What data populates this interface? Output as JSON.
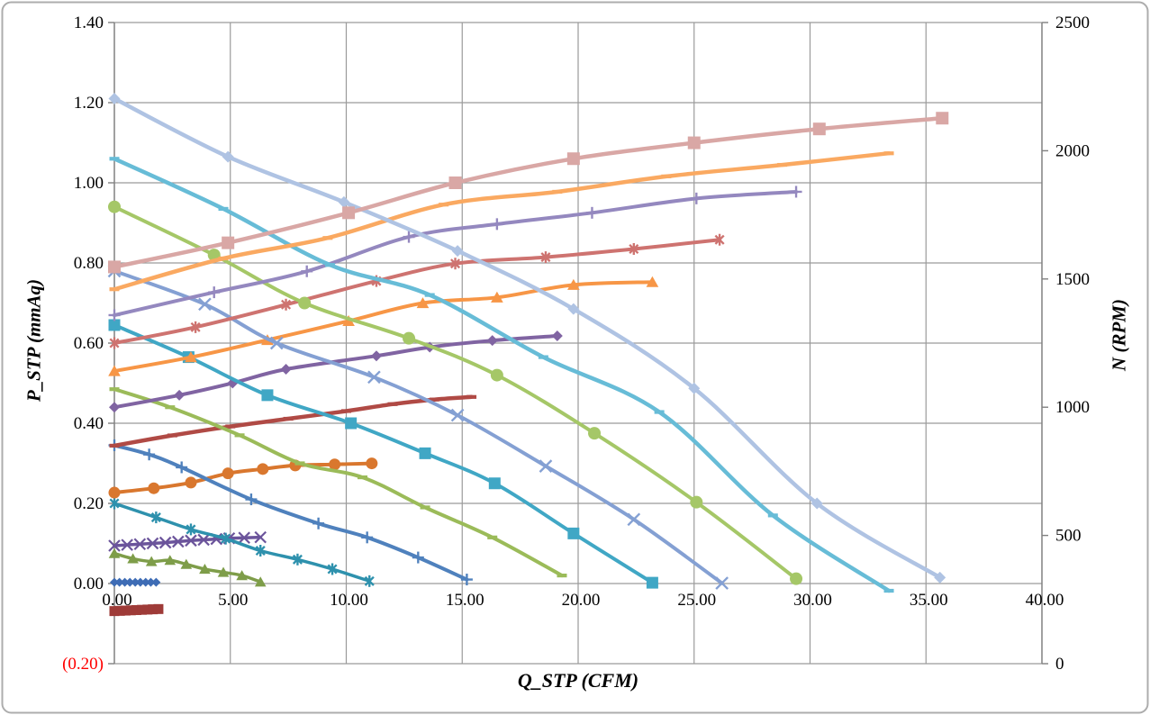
{
  "chart_data": {
    "type": "line",
    "xlabel": "Q_STP (CFM)",
    "ylabel_left": "P_STP (mmAq)",
    "ylabel_right": "N (RPM)",
    "xlim": [
      0,
      40
    ],
    "ylim_left": [
      -0.2,
      1.4
    ],
    "ylim_right": [
      0,
      2500
    ],
    "grid": true,
    "legend": "none",
    "colors": {
      "grid": "#9A9A9A",
      "axis": "#808080",
      "frame": "#ADADAD",
      "text": "#000000",
      "negative_tick": "#FF0000"
    },
    "x_ticks": [
      {
        "label": "0.00",
        "value": 0
      },
      {
        "label": "5.00",
        "value": 5
      },
      {
        "label": "10.00",
        "value": 10
      },
      {
        "label": "15.00",
        "value": 15
      },
      {
        "label": "20.00",
        "value": 20
      },
      {
        "label": "25.00",
        "value": 25
      },
      {
        "label": "30.00",
        "value": 30
      },
      {
        "label": "35.00",
        "value": 35
      },
      {
        "label": "40.00",
        "value": 40
      }
    ],
    "y_left_ticks": [
      {
        "label": "1.40",
        "value": 1.4
      },
      {
        "label": "1.20",
        "value": 1.2
      },
      {
        "label": "1.00",
        "value": 1.0
      },
      {
        "label": "0.80",
        "value": 0.8
      },
      {
        "label": "0.60",
        "value": 0.6
      },
      {
        "label": "0.40",
        "value": 0.4
      },
      {
        "label": "0.20",
        "value": 0.2
      },
      {
        "label": "0.00",
        "value": 0.0
      },
      {
        "label": "(0.20)",
        "value": -0.2,
        "negative": true
      }
    ],
    "y_right_ticks": [
      {
        "label": "2500",
        "value": 2500
      },
      {
        "label": "2000",
        "value": 2000
      },
      {
        "label": "1500",
        "value": 1500
      },
      {
        "label": "1000",
        "value": 1000
      },
      {
        "label": "500",
        "value": 500
      },
      {
        "label": "0",
        "value": 0
      }
    ],
    "series": [
      {
        "id": "pressure-speed-1",
        "axis": "left",
        "color": "#3E6CB5",
        "marker": "diamond",
        "marker_size": 10,
        "line_width": 3.5,
        "points": [
          [
            0,
            0.003
          ],
          [
            0.22,
            0.003
          ],
          [
            0.45,
            0.003
          ],
          [
            0.67,
            0.003
          ],
          [
            0.9,
            0.003
          ],
          [
            1.12,
            0.003
          ],
          [
            1.35,
            0.003
          ],
          [
            1.57,
            0.003
          ],
          [
            1.8,
            0.003
          ]
        ]
      },
      {
        "id": "rpm-speed-1",
        "axis": "right",
        "color": "#9E3B38",
        "marker": "square",
        "marker_size": 11,
        "line_width": 3.5,
        "points": [
          [
            0,
            205
          ],
          [
            0.24,
            206
          ],
          [
            0.48,
            207
          ],
          [
            0.71,
            208
          ],
          [
            0.95,
            209
          ],
          [
            1.19,
            210
          ],
          [
            1.43,
            211
          ],
          [
            1.66,
            212
          ],
          [
            1.9,
            213
          ]
        ]
      },
      {
        "id": "pressure-speed-2",
        "axis": "left",
        "color": "#7E9D49",
        "marker": "triangle",
        "marker_size": 12,
        "line_width": 3.5,
        "points": [
          [
            0,
            0.075
          ],
          [
            0.8,
            0.062
          ],
          [
            1.6,
            0.055
          ],
          [
            2.4,
            0.058
          ],
          [
            3.1,
            0.048
          ],
          [
            3.9,
            0.036
          ],
          [
            4.7,
            0.028
          ],
          [
            5.5,
            0.02
          ],
          [
            6.3,
            0.004
          ]
        ]
      },
      {
        "id": "rpm-speed-2",
        "axis": "right",
        "color": "#6B549B",
        "marker": "x",
        "marker_size": 12,
        "line_width": 3.5,
        "points": [
          [
            0,
            460
          ],
          [
            0.55,
            463
          ],
          [
            1.1,
            466
          ],
          [
            1.65,
            469
          ],
          [
            2.2,
            472
          ],
          [
            2.75,
            476
          ],
          [
            3.3,
            480
          ],
          [
            3.85,
            483
          ],
          [
            4.4,
            486
          ],
          [
            4.95,
            489
          ],
          [
            5.6,
            491
          ],
          [
            6.3,
            493
          ]
        ]
      },
      {
        "id": "pressure-speed-3",
        "axis": "left",
        "color": "#2E91AD",
        "marker": "asterisk",
        "marker_size": 13,
        "line_width": 3.5,
        "points": [
          [
            0,
            0.2
          ],
          [
            1.8,
            0.165
          ],
          [
            3.3,
            0.135
          ],
          [
            4.8,
            0.112
          ],
          [
            6.3,
            0.082
          ],
          [
            7.9,
            0.06
          ],
          [
            9.4,
            0.036
          ],
          [
            11,
            0.006
          ]
        ]
      },
      {
        "id": "rpm-speed-3",
        "axis": "right",
        "color": "#D9772E",
        "marker": "circle",
        "marker_size": 13,
        "line_width": 4,
        "points": [
          [
            0,
            667
          ],
          [
            1.7,
            684
          ],
          [
            3.3,
            706
          ],
          [
            4.9,
            742
          ],
          [
            6.4,
            759
          ],
          [
            7.8,
            773
          ],
          [
            9.5,
            777
          ],
          [
            11.1,
            781
          ]
        ]
      },
      {
        "id": "pressure-speed-4",
        "axis": "left",
        "color": "#4F81BD",
        "marker": "plus",
        "marker_size": 13,
        "line_width": 4,
        "points": [
          [
            0,
            0.345
          ],
          [
            1.5,
            0.322
          ],
          [
            2.9,
            0.29
          ],
          [
            5.9,
            0.21
          ],
          [
            8.8,
            0.15
          ],
          [
            10.9,
            0.115
          ],
          [
            13.1,
            0.065
          ],
          [
            15.2,
            0.01
          ]
        ]
      },
      {
        "id": "rpm-speed-4",
        "axis": "right",
        "color": "#B04A45",
        "marker": "dash",
        "marker_size": 11,
        "line_width": 4.5,
        "points": [
          [
            0,
            850
          ],
          [
            2.5,
            890
          ],
          [
            5,
            925
          ],
          [
            7.5,
            955
          ],
          [
            10,
            985
          ],
          [
            12,
            1012
          ],
          [
            13.8,
            1030
          ],
          [
            15.4,
            1040
          ]
        ]
      },
      {
        "id": "pressure-speed-5",
        "axis": "left",
        "color": "#9BBB59",
        "marker": "dash",
        "marker_size": 11,
        "line_width": 4,
        "points": [
          [
            0,
            0.485
          ],
          [
            2.4,
            0.44
          ],
          [
            5.4,
            0.37
          ],
          [
            8,
            0.3
          ],
          [
            10.7,
            0.265
          ],
          [
            13.4,
            0.19
          ],
          [
            16.3,
            0.115
          ],
          [
            19.3,
            0.02
          ]
        ]
      },
      {
        "id": "rpm-speed-5",
        "axis": "right",
        "color": "#8064A2",
        "marker": "diamond",
        "marker_size": 12,
        "line_width": 4,
        "points": [
          [
            0,
            1000
          ],
          [
            2.8,
            1047
          ],
          [
            5.1,
            1094
          ],
          [
            7.4,
            1148
          ],
          [
            11.3,
            1200
          ],
          [
            13.6,
            1234
          ],
          [
            16.3,
            1260
          ],
          [
            19.1,
            1278
          ]
        ]
      },
      {
        "id": "pressure-speed-6",
        "axis": "left",
        "color": "#40A7C5",
        "marker": "square",
        "marker_size": 13,
        "line_width": 4,
        "points": [
          [
            0,
            0.645
          ],
          [
            3.2,
            0.565
          ],
          [
            6.6,
            0.47
          ],
          [
            10.2,
            0.4
          ],
          [
            13.4,
            0.325
          ],
          [
            16.4,
            0.25
          ],
          [
            19.8,
            0.125
          ],
          [
            23.2,
            0.002
          ]
        ]
      },
      {
        "id": "rpm-speed-6",
        "axis": "right",
        "color": "#F79646",
        "marker": "triangle",
        "marker_size": 13,
        "line_width": 4,
        "points": [
          [
            0,
            1141
          ],
          [
            3.3,
            1195
          ],
          [
            6.6,
            1262
          ],
          [
            10.1,
            1336
          ],
          [
            13.3,
            1406
          ],
          [
            16.5,
            1428
          ],
          [
            19.8,
            1477
          ],
          [
            23.2,
            1488
          ]
        ]
      },
      {
        "id": "pressure-speed-7",
        "axis": "left",
        "color": "#84A0D3",
        "marker": "x",
        "marker_size": 13,
        "line_width": 4,
        "points": [
          [
            0,
            0.78
          ],
          [
            3.9,
            0.697
          ],
          [
            7,
            0.6
          ],
          [
            11.2,
            0.515
          ],
          [
            14.8,
            0.42
          ],
          [
            18.6,
            0.293
          ],
          [
            22.4,
            0.16
          ],
          [
            26.2,
            0.001
          ]
        ]
      },
      {
        "id": "rpm-speed-7",
        "axis": "right",
        "color": "#CE7370",
        "marker": "asterisk",
        "marker_size": 13,
        "line_width": 4,
        "points": [
          [
            0,
            1250
          ],
          [
            3.5,
            1312
          ],
          [
            7.4,
            1400
          ],
          [
            11.3,
            1492
          ],
          [
            14.7,
            1560
          ],
          [
            18.6,
            1585
          ],
          [
            22.4,
            1617
          ],
          [
            26.1,
            1653
          ]
        ]
      },
      {
        "id": "pressure-speed-8",
        "axis": "left",
        "color": "#A5C767",
        "marker": "circle",
        "marker_size": 14,
        "line_width": 4,
        "points": [
          [
            0,
            0.94
          ],
          [
            4.3,
            0.82
          ],
          [
            8.2,
            0.7
          ],
          [
            12.7,
            0.612
          ],
          [
            16.5,
            0.52
          ],
          [
            20.7,
            0.375
          ],
          [
            25.1,
            0.203
          ],
          [
            29.4,
            0.012
          ]
        ]
      },
      {
        "id": "rpm-speed-8",
        "axis": "right",
        "color": "#9488BF",
        "marker": "plus",
        "marker_size": 13,
        "line_width": 4,
        "points": [
          [
            0,
            1359
          ],
          [
            4.3,
            1448
          ],
          [
            8.3,
            1530
          ],
          [
            12.7,
            1664
          ],
          [
            16.5,
            1714
          ],
          [
            20.6,
            1758
          ],
          [
            25.1,
            1814
          ],
          [
            29.4,
            1840
          ]
        ]
      },
      {
        "id": "pressure-speed-9",
        "axis": "left",
        "color": "#67BCD7",
        "marker": "dash",
        "marker_size": 11,
        "line_width": 4.5,
        "points": [
          [
            0,
            1.06
          ],
          [
            4.7,
            0.935
          ],
          [
            9.3,
            0.795
          ],
          [
            13.6,
            0.72
          ],
          [
            18.5,
            0.565
          ],
          [
            23.5,
            0.428
          ],
          [
            28.4,
            0.17
          ],
          [
            33.4,
            -0.018
          ]
        ]
      },
      {
        "id": "rpm-speed-9",
        "axis": "right",
        "color": "#FAA961",
        "marker": "dash",
        "marker_size": 11,
        "line_width": 4.5,
        "points": [
          [
            0,
            1460
          ],
          [
            4.7,
            1580
          ],
          [
            9.2,
            1660
          ],
          [
            14.2,
            1790
          ],
          [
            19.1,
            1840
          ],
          [
            23.8,
            1900
          ],
          [
            28.8,
            1945
          ],
          [
            33.4,
            1990
          ]
        ]
      },
      {
        "id": "pressure-speed-10",
        "axis": "left",
        "color": "#AFC3E3",
        "marker": "diamond",
        "marker_size": 13,
        "line_width": 4.5,
        "points": [
          [
            0,
            1.21
          ],
          [
            4.9,
            1.065
          ],
          [
            9.9,
            0.952
          ],
          [
            14.8,
            0.83
          ],
          [
            19.8,
            0.685
          ],
          [
            25,
            0.487
          ],
          [
            30.3,
            0.2
          ],
          [
            35.6,
            0.015
          ]
        ]
      },
      {
        "id": "rpm-speed-10",
        "axis": "right",
        "color": "#D9A7A5",
        "marker": "square",
        "marker_size": 14,
        "line_width": 4.5,
        "points": [
          [
            0,
            1547
          ],
          [
            4.9,
            1641
          ],
          [
            10.1,
            1758
          ],
          [
            14.7,
            1875
          ],
          [
            19.8,
            1969
          ],
          [
            25,
            2031
          ],
          [
            30.4,
            2085
          ],
          [
            35.7,
            2127
          ]
        ]
      }
    ]
  }
}
